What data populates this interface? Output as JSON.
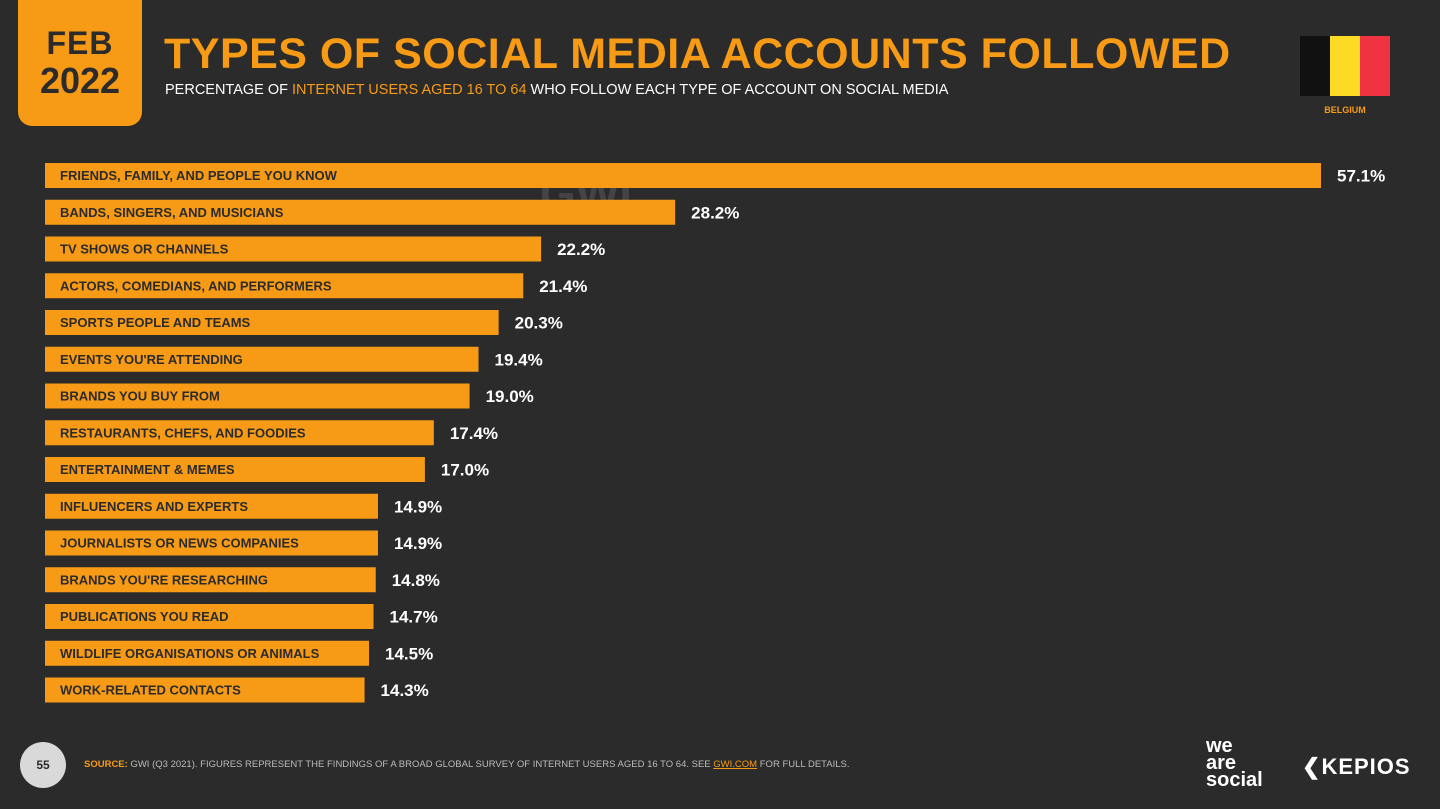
{
  "badge": {
    "month": "FEB",
    "year": "2022"
  },
  "title": "TYPES OF SOCIAL MEDIA ACCOUNTS FOLLOWED",
  "subtitle": {
    "before": "PERCENTAGE OF ",
    "highlight": "INTERNET USERS AGED 16 TO 64",
    "after": " WHO FOLLOW EACH TYPE OF ACCOUNT ON SOCIAL MEDIA"
  },
  "flag": {
    "label": "BELGIUM",
    "colors": [
      "#111111",
      "#fdda24",
      "#ef3340"
    ]
  },
  "colors": {
    "accent": "#f79b16",
    "background": "#2b2b2b",
    "bar_text": "#2b2b2b",
    "value_text": "#ffffff"
  },
  "watermark": "GWI.",
  "chart_data": {
    "type": "bar",
    "orientation": "horizontal",
    "categories": [
      "FRIENDS, FAMILY, AND PEOPLE YOU KNOW",
      "BANDS, SINGERS, AND MUSICIANS",
      "TV SHOWS OR CHANNELS",
      "ACTORS, COMEDIANS, AND PERFORMERS",
      "SPORTS PEOPLE AND TEAMS",
      "EVENTS YOU'RE ATTENDING",
      "BRANDS YOU BUY FROM",
      "RESTAURANTS, CHEFS, AND FOODIES",
      "ENTERTAINMENT & MEMES",
      "INFLUENCERS AND EXPERTS",
      "JOURNALISTS OR NEWS COMPANIES",
      "BRANDS YOU'RE RESEARCHING",
      "PUBLICATIONS YOU READ",
      "WILDLIFE ORGANISATIONS OR ANIMALS",
      "WORK-RELATED CONTACTS"
    ],
    "values": [
      57.1,
      28.2,
      22.2,
      21.4,
      20.3,
      19.4,
      19.0,
      17.4,
      17.0,
      14.9,
      14.9,
      14.8,
      14.7,
      14.5,
      14.3
    ],
    "labels": [
      "57.1%",
      "28.2%",
      "22.2%",
      "21.4%",
      "20.3%",
      "19.4%",
      "19.0%",
      "17.4%",
      "17.0%",
      "14.9%",
      "14.9%",
      "14.8%",
      "14.7%",
      "14.5%",
      "14.3%"
    ],
    "xlim": [
      0,
      57.1
    ],
    "grid": false,
    "legend": "none"
  },
  "footer": {
    "page_number": "55",
    "source_label": "SOURCE:",
    "source_text": " GWI (Q3 2021). FIGURES REPRESENT THE FINDINGS OF A BROAD GLOBAL SURVEY OF INTERNET USERS AGED 16 TO 64. SEE ",
    "source_link": "GWI.COM",
    "source_after": " FOR FULL DETAILS.",
    "brand1": [
      "we",
      "are",
      "social"
    ],
    "brand2": "KEPIOS"
  }
}
